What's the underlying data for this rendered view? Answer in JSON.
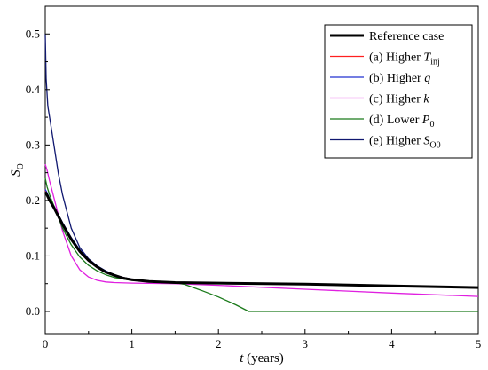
{
  "chart_data": {
    "type": "line",
    "xlabel": {
      "main": "t",
      "unit": " (years)"
    },
    "ylabel": {
      "main": "S",
      "sub": "O"
    },
    "xlim": [
      0,
      5
    ],
    "ylim": [
      -0.04,
      0.55
    ],
    "xticks": [
      "0",
      "1",
      "2",
      "3",
      "4",
      "5"
    ],
    "yticks": [
      "0.0",
      "0.1",
      "0.2",
      "0.3",
      "0.4",
      "0.5"
    ],
    "grid": false,
    "legend_position": "top-right",
    "series": [
      {
        "name": "Reference case",
        "legend": {
          "main": "Reference case",
          "italic": "",
          "sub": ""
        },
        "color": "#000000",
        "width": 3,
        "x": [
          0,
          0.02,
          0.05,
          0.1,
          0.15,
          0.2,
          0.3,
          0.4,
          0.5,
          0.6,
          0.7,
          0.8,
          0.9,
          1.0,
          1.2,
          1.5,
          2.0,
          3.0,
          4.0,
          5.0
        ],
        "y": [
          0.215,
          0.21,
          0.2,
          0.187,
          0.172,
          0.157,
          0.13,
          0.108,
          0.092,
          0.08,
          0.071,
          0.065,
          0.06,
          0.057,
          0.054,
          0.052,
          0.051,
          0.049,
          0.046,
          0.043
        ]
      },
      {
        "name": "(a) Higher T_inj",
        "legend": {
          "main": "(a) Higher ",
          "italic": "T",
          "sub": "inj"
        },
        "color": "#ff2020",
        "width": 1.3,
        "x": [
          0,
          0.02,
          0.05,
          0.1,
          0.15,
          0.2,
          0.3,
          0.4,
          0.5,
          0.6,
          0.7,
          0.8,
          0.9,
          1.0,
          1.2,
          1.5,
          2.0,
          3.0,
          4.0,
          5.0
        ],
        "y": [
          0.218,
          0.213,
          0.202,
          0.189,
          0.174,
          0.159,
          0.132,
          0.11,
          0.093,
          0.081,
          0.072,
          0.066,
          0.061,
          0.058,
          0.054,
          0.052,
          0.051,
          0.049,
          0.046,
          0.043
        ]
      },
      {
        "name": "(b) Higher q",
        "legend": {
          "main": "(b) Higher ",
          "italic": "q",
          "sub": ""
        },
        "color": "#2030d0",
        "width": 1.3,
        "x": [
          0,
          0.02,
          0.05,
          0.1,
          0.15,
          0.2,
          0.3,
          0.4,
          0.5,
          0.6,
          0.7,
          0.8,
          0.9,
          1.0,
          1.2,
          1.5,
          2.0,
          3.0,
          4.0,
          5.0
        ],
        "y": [
          0.22,
          0.214,
          0.203,
          0.19,
          0.175,
          0.16,
          0.133,
          0.111,
          0.094,
          0.082,
          0.073,
          0.066,
          0.061,
          0.058,
          0.054,
          0.052,
          0.051,
          0.049,
          0.046,
          0.043
        ]
      },
      {
        "name": "(c) Higher k",
        "legend": {
          "main": "(c) Higher ",
          "italic": "k",
          "sub": ""
        },
        "color": "#e020e0",
        "width": 1.3,
        "x": [
          0,
          0.02,
          0.05,
          0.1,
          0.15,
          0.2,
          0.3,
          0.4,
          0.5,
          0.6,
          0.7,
          0.8,
          1.0,
          1.5,
          2.0,
          3.0,
          4.0,
          5.0
        ],
        "y": [
          0.265,
          0.255,
          0.235,
          0.205,
          0.175,
          0.145,
          0.1,
          0.075,
          0.062,
          0.056,
          0.053,
          0.052,
          0.051,
          0.05,
          0.047,
          0.04,
          0.033,
          0.027
        ]
      },
      {
        "name": "(d) Lower P_0",
        "legend": {
          "main": "(d) Lower ",
          "italic": "P",
          "sub": "0"
        },
        "color": "#1a7a1a",
        "width": 1.3,
        "x": [
          0,
          0.02,
          0.05,
          0.1,
          0.15,
          0.2,
          0.3,
          0.4,
          0.5,
          0.6,
          0.7,
          0.8,
          1.0,
          1.2,
          1.5,
          1.6,
          1.8,
          2.0,
          2.2,
          2.35,
          2.5,
          3.0,
          4.0,
          5.0
        ],
        "y": [
          0.24,
          0.225,
          0.21,
          0.19,
          0.17,
          0.15,
          0.12,
          0.098,
          0.083,
          0.073,
          0.066,
          0.061,
          0.056,
          0.054,
          0.052,
          0.049,
          0.038,
          0.026,
          0.012,
          0.0,
          0.0,
          0.0,
          0.0,
          0.0
        ]
      },
      {
        "name": "(e) Higher S_O0",
        "legend": {
          "main": "(e) Higher ",
          "italic": "S",
          "sub": "O0"
        },
        "color": "#101870",
        "width": 1.3,
        "x": [
          0,
          0.01,
          0.03,
          0.05,
          0.1,
          0.15,
          0.2,
          0.3,
          0.4,
          0.5,
          0.6,
          0.7,
          0.8,
          0.9,
          1.0,
          1.2,
          1.5,
          2.0,
          3.0,
          4.0,
          5.0
        ],
        "y": [
          0.5,
          0.42,
          0.37,
          0.35,
          0.3,
          0.25,
          0.21,
          0.15,
          0.115,
          0.095,
          0.082,
          0.072,
          0.066,
          0.061,
          0.058,
          0.054,
          0.052,
          0.051,
          0.049,
          0.046,
          0.043
        ]
      }
    ]
  }
}
